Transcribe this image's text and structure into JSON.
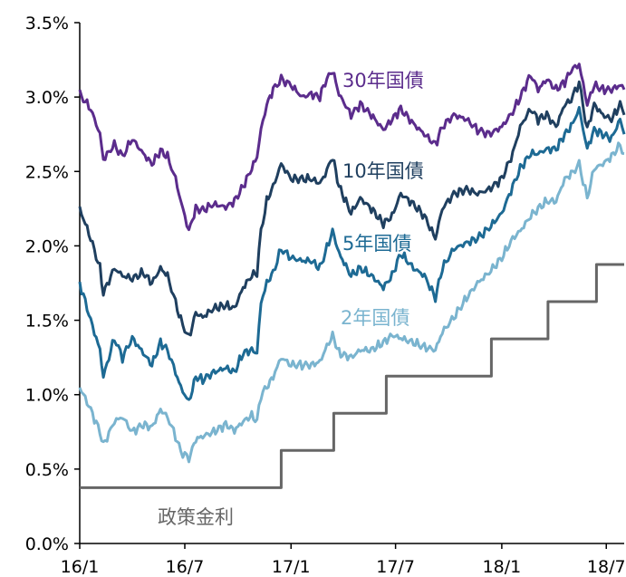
{
  "chart_data": {
    "type": "line",
    "title": "",
    "xlabel": "",
    "ylabel": "",
    "xlim": [
      "2016-01",
      "2018-08"
    ],
    "ylim": [
      0,
      3.5
    ],
    "x_ticks": [
      "16/1",
      "16/7",
      "17/1",
      "17/7",
      "18/1",
      "18/7"
    ],
    "y_ticks": [
      "0.0%",
      "0.5%",
      "1.0%",
      "1.5%",
      "2.0%",
      "2.5%",
      "3.0%",
      "3.5%"
    ],
    "grid": false,
    "legend": "inline labels",
    "series": [
      {
        "name": "30年国債",
        "color": "#5b2c8c",
        "points": [
          [
            "2016-01-01",
            3.02
          ],
          [
            "2016-01-20",
            2.92
          ],
          [
            "2016-02-05",
            2.75
          ],
          [
            "2016-02-11",
            2.58
          ],
          [
            "2016-03-01",
            2.68
          ],
          [
            "2016-03-15",
            2.6
          ],
          [
            "2016-04-01",
            2.72
          ],
          [
            "2016-04-20",
            2.62
          ],
          [
            "2016-05-05",
            2.55
          ],
          [
            "2016-05-20",
            2.64
          ],
          [
            "2016-06-01",
            2.6
          ],
          [
            "2016-06-15",
            2.45
          ],
          [
            "2016-06-24",
            2.3
          ],
          [
            "2016-07-08",
            2.1
          ],
          [
            "2016-07-20",
            2.25
          ],
          [
            "2016-08-01",
            2.24
          ],
          [
            "2016-08-20",
            2.28
          ],
          [
            "2016-09-10",
            2.26
          ],
          [
            "2016-09-25",
            2.3
          ],
          [
            "2016-10-10",
            2.4
          ],
          [
            "2016-10-25",
            2.52
          ],
          [
            "2016-11-03",
            2.6
          ],
          [
            "2016-11-10",
            2.78
          ],
          [
            "2016-11-20",
            2.95
          ],
          [
            "2016-12-01",
            3.05
          ],
          [
            "2016-12-15",
            3.12
          ],
          [
            "2017-01-01",
            3.08
          ],
          [
            "2017-01-20",
            3.0
          ],
          [
            "2017-02-05",
            3.02
          ],
          [
            "2017-02-20",
            3.0
          ],
          [
            "2017-03-01",
            3.1
          ],
          [
            "2017-03-14",
            3.18
          ],
          [
            "2017-03-25",
            3.02
          ],
          [
            "2017-04-15",
            2.88
          ],
          [
            "2017-05-01",
            2.95
          ],
          [
            "2017-05-20",
            2.88
          ],
          [
            "2017-06-10",
            2.78
          ],
          [
            "2017-06-25",
            2.85
          ],
          [
            "2017-07-10",
            2.92
          ],
          [
            "2017-08-01",
            2.82
          ],
          [
            "2017-08-20",
            2.75
          ],
          [
            "2017-09-08",
            2.68
          ],
          [
            "2017-09-20",
            2.8
          ],
          [
            "2017-10-10",
            2.88
          ],
          [
            "2017-11-01",
            2.85
          ],
          [
            "2017-11-20",
            2.78
          ],
          [
            "2017-12-10",
            2.75
          ],
          [
            "2018-01-01",
            2.8
          ],
          [
            "2018-01-20",
            2.9
          ],
          [
            "2018-02-02",
            3.0
          ],
          [
            "2018-02-20",
            3.15
          ],
          [
            "2018-03-05",
            3.05
          ],
          [
            "2018-03-20",
            3.12
          ],
          [
            "2018-04-05",
            3.05
          ],
          [
            "2018-04-20",
            3.1
          ],
          [
            "2018-05-01",
            3.18
          ],
          [
            "2018-05-15",
            3.22
          ],
          [
            "2018-05-29",
            2.95
          ],
          [
            "2018-06-10",
            3.08
          ],
          [
            "2018-06-25",
            3.05
          ],
          [
            "2018-07-10",
            3.05
          ],
          [
            "2018-07-25",
            3.08
          ],
          [
            "2018-08-01",
            3.05
          ]
        ]
      },
      {
        "name": "10年国債",
        "color": "#1f3f5f",
        "points": [
          [
            "2016-01-01",
            2.25
          ],
          [
            "2016-01-20",
            2.05
          ],
          [
            "2016-02-05",
            1.85
          ],
          [
            "2016-02-11",
            1.68
          ],
          [
            "2016-03-01",
            1.85
          ],
          [
            "2016-03-15",
            1.8
          ],
          [
            "2016-04-01",
            1.78
          ],
          [
            "2016-04-20",
            1.82
          ],
          [
            "2016-05-05",
            1.75
          ],
          [
            "2016-05-20",
            1.85
          ],
          [
            "2016-06-01",
            1.8
          ],
          [
            "2016-06-15",
            1.62
          ],
          [
            "2016-06-24",
            1.5
          ],
          [
            "2016-07-08",
            1.38
          ],
          [
            "2016-07-20",
            1.55
          ],
          [
            "2016-08-01",
            1.52
          ],
          [
            "2016-08-20",
            1.58
          ],
          [
            "2016-09-10",
            1.6
          ],
          [
            "2016-09-25",
            1.58
          ],
          [
            "2016-10-10",
            1.72
          ],
          [
            "2016-10-25",
            1.8
          ],
          [
            "2016-11-03",
            1.82
          ],
          [
            "2016-11-10",
            2.1
          ],
          [
            "2016-11-20",
            2.3
          ],
          [
            "2016-12-01",
            2.4
          ],
          [
            "2016-12-15",
            2.55
          ],
          [
            "2017-01-01",
            2.45
          ],
          [
            "2017-01-20",
            2.45
          ],
          [
            "2017-02-05",
            2.45
          ],
          [
            "2017-02-20",
            2.42
          ],
          [
            "2017-03-01",
            2.48
          ],
          [
            "2017-03-14",
            2.6
          ],
          [
            "2017-03-25",
            2.4
          ],
          [
            "2017-04-15",
            2.22
          ],
          [
            "2017-05-01",
            2.32
          ],
          [
            "2017-05-20",
            2.25
          ],
          [
            "2017-06-10",
            2.15
          ],
          [
            "2017-06-25",
            2.2
          ],
          [
            "2017-07-10",
            2.35
          ],
          [
            "2017-08-01",
            2.28
          ],
          [
            "2017-08-20",
            2.2
          ],
          [
            "2017-09-08",
            2.05
          ],
          [
            "2017-09-20",
            2.25
          ],
          [
            "2017-10-10",
            2.35
          ],
          [
            "2017-11-01",
            2.38
          ],
          [
            "2017-11-20",
            2.35
          ],
          [
            "2017-12-10",
            2.38
          ],
          [
            "2018-01-01",
            2.45
          ],
          [
            "2018-01-20",
            2.62
          ],
          [
            "2018-02-02",
            2.8
          ],
          [
            "2018-02-20",
            2.92
          ],
          [
            "2018-03-05",
            2.85
          ],
          [
            "2018-03-20",
            2.88
          ],
          [
            "2018-04-05",
            2.8
          ],
          [
            "2018-04-20",
            2.95
          ],
          [
            "2018-05-01",
            2.98
          ],
          [
            "2018-05-15",
            3.1
          ],
          [
            "2018-05-29",
            2.78
          ],
          [
            "2018-06-10",
            2.95
          ],
          [
            "2018-06-25",
            2.88
          ],
          [
            "2018-07-10",
            2.85
          ],
          [
            "2018-07-25",
            2.95
          ],
          [
            "2018-08-01",
            2.88
          ]
        ]
      },
      {
        "name": "5年国債",
        "color": "#1d6a94",
        "points": [
          [
            "2016-01-01",
            1.75
          ],
          [
            "2016-01-20",
            1.5
          ],
          [
            "2016-02-05",
            1.3
          ],
          [
            "2016-02-11",
            1.12
          ],
          [
            "2016-03-01",
            1.38
          ],
          [
            "2016-03-15",
            1.25
          ],
          [
            "2016-04-01",
            1.38
          ],
          [
            "2016-04-20",
            1.28
          ],
          [
            "2016-05-05",
            1.2
          ],
          [
            "2016-05-20",
            1.35
          ],
          [
            "2016-06-01",
            1.3
          ],
          [
            "2016-06-15",
            1.15
          ],
          [
            "2016-06-24",
            1.05
          ],
          [
            "2016-07-08",
            0.95
          ],
          [
            "2016-07-20",
            1.12
          ],
          [
            "2016-08-01",
            1.1
          ],
          [
            "2016-08-20",
            1.15
          ],
          [
            "2016-09-10",
            1.18
          ],
          [
            "2016-09-25",
            1.15
          ],
          [
            "2016-10-10",
            1.28
          ],
          [
            "2016-10-25",
            1.3
          ],
          [
            "2016-11-03",
            1.28
          ],
          [
            "2016-11-10",
            1.62
          ],
          [
            "2016-11-20",
            1.75
          ],
          [
            "2016-12-01",
            1.82
          ],
          [
            "2016-12-15",
            1.98
          ],
          [
            "2017-01-01",
            1.92
          ],
          [
            "2017-01-20",
            1.9
          ],
          [
            "2017-02-05",
            1.9
          ],
          [
            "2017-02-20",
            1.85
          ],
          [
            "2017-03-01",
            1.95
          ],
          [
            "2017-03-14",
            2.1
          ],
          [
            "2017-03-25",
            1.95
          ],
          [
            "2017-04-15",
            1.8
          ],
          [
            "2017-05-01",
            1.85
          ],
          [
            "2017-05-20",
            1.8
          ],
          [
            "2017-06-10",
            1.72
          ],
          [
            "2017-06-25",
            1.8
          ],
          [
            "2017-07-10",
            1.95
          ],
          [
            "2017-08-01",
            1.85
          ],
          [
            "2017-08-20",
            1.8
          ],
          [
            "2017-09-08",
            1.65
          ],
          [
            "2017-09-20",
            1.85
          ],
          [
            "2017-10-10",
            1.98
          ],
          [
            "2017-11-01",
            2.02
          ],
          [
            "2017-11-20",
            2.05
          ],
          [
            "2017-12-10",
            2.12
          ],
          [
            "2018-01-01",
            2.22
          ],
          [
            "2018-01-20",
            2.4
          ],
          [
            "2018-02-02",
            2.52
          ],
          [
            "2018-02-20",
            2.62
          ],
          [
            "2018-03-05",
            2.62
          ],
          [
            "2018-03-20",
            2.65
          ],
          [
            "2018-04-05",
            2.65
          ],
          [
            "2018-04-20",
            2.75
          ],
          [
            "2018-05-01",
            2.8
          ],
          [
            "2018-05-15",
            2.92
          ],
          [
            "2018-05-29",
            2.65
          ],
          [
            "2018-06-10",
            2.78
          ],
          [
            "2018-06-25",
            2.75
          ],
          [
            "2018-07-10",
            2.72
          ],
          [
            "2018-07-25",
            2.85
          ],
          [
            "2018-08-01",
            2.75
          ]
        ]
      },
      {
        "name": "2年国債",
        "color": "#7ab4cf",
        "points": [
          [
            "2016-01-01",
            1.05
          ],
          [
            "2016-01-20",
            0.9
          ],
          [
            "2016-02-05",
            0.75
          ],
          [
            "2016-02-11",
            0.66
          ],
          [
            "2016-03-01",
            0.82
          ],
          [
            "2016-03-15",
            0.85
          ],
          [
            "2016-04-01",
            0.75
          ],
          [
            "2016-04-20",
            0.8
          ],
          [
            "2016-05-05",
            0.78
          ],
          [
            "2016-05-20",
            0.9
          ],
          [
            "2016-06-01",
            0.85
          ],
          [
            "2016-06-15",
            0.72
          ],
          [
            "2016-06-24",
            0.62
          ],
          [
            "2016-07-08",
            0.57
          ],
          [
            "2016-07-20",
            0.7
          ],
          [
            "2016-08-01",
            0.72
          ],
          [
            "2016-08-20",
            0.75
          ],
          [
            "2016-09-10",
            0.8
          ],
          [
            "2016-09-25",
            0.76
          ],
          [
            "2016-10-10",
            0.82
          ],
          [
            "2016-10-25",
            0.86
          ],
          [
            "2016-11-03",
            0.82
          ],
          [
            "2016-11-10",
            1.0
          ],
          [
            "2016-11-20",
            1.05
          ],
          [
            "2016-12-01",
            1.12
          ],
          [
            "2016-12-15",
            1.25
          ],
          [
            "2017-01-01",
            1.2
          ],
          [
            "2017-01-20",
            1.2
          ],
          [
            "2017-02-05",
            1.2
          ],
          [
            "2017-02-20",
            1.22
          ],
          [
            "2017-03-01",
            1.3
          ],
          [
            "2017-03-14",
            1.4
          ],
          [
            "2017-03-25",
            1.28
          ],
          [
            "2017-04-15",
            1.25
          ],
          [
            "2017-05-01",
            1.3
          ],
          [
            "2017-05-20",
            1.3
          ],
          [
            "2017-06-10",
            1.35
          ],
          [
            "2017-06-25",
            1.4
          ],
          [
            "2017-07-10",
            1.38
          ],
          [
            "2017-08-01",
            1.35
          ],
          [
            "2017-08-20",
            1.32
          ],
          [
            "2017-09-08",
            1.3
          ],
          [
            "2017-09-20",
            1.42
          ],
          [
            "2017-10-10",
            1.52
          ],
          [
            "2017-11-01",
            1.65
          ],
          [
            "2017-11-20",
            1.75
          ],
          [
            "2017-12-10",
            1.82
          ],
          [
            "2018-01-01",
            1.92
          ],
          [
            "2018-01-20",
            2.05
          ],
          [
            "2018-02-02",
            2.1
          ],
          [
            "2018-02-20",
            2.2
          ],
          [
            "2018-03-05",
            2.25
          ],
          [
            "2018-03-20",
            2.3
          ],
          [
            "2018-04-05",
            2.3
          ],
          [
            "2018-04-20",
            2.45
          ],
          [
            "2018-05-01",
            2.48
          ],
          [
            "2018-05-15",
            2.55
          ],
          [
            "2018-05-29",
            2.32
          ],
          [
            "2018-06-10",
            2.52
          ],
          [
            "2018-06-25",
            2.55
          ],
          [
            "2018-07-10",
            2.6
          ],
          [
            "2018-07-25",
            2.68
          ],
          [
            "2018-08-01",
            2.62
          ]
        ]
      },
      {
        "name": "政策金利",
        "color": "#666666",
        "step": true,
        "points": [
          [
            "2016-01-01",
            0.375
          ],
          [
            "2016-12-15",
            0.625
          ],
          [
            "2017-03-16",
            0.875
          ],
          [
            "2017-06-15",
            1.125
          ],
          [
            "2017-12-14",
            1.375
          ],
          [
            "2018-03-22",
            1.625
          ],
          [
            "2018-06-14",
            1.875
          ],
          [
            "2018-08-01",
            1.875
          ]
        ]
      }
    ]
  }
}
